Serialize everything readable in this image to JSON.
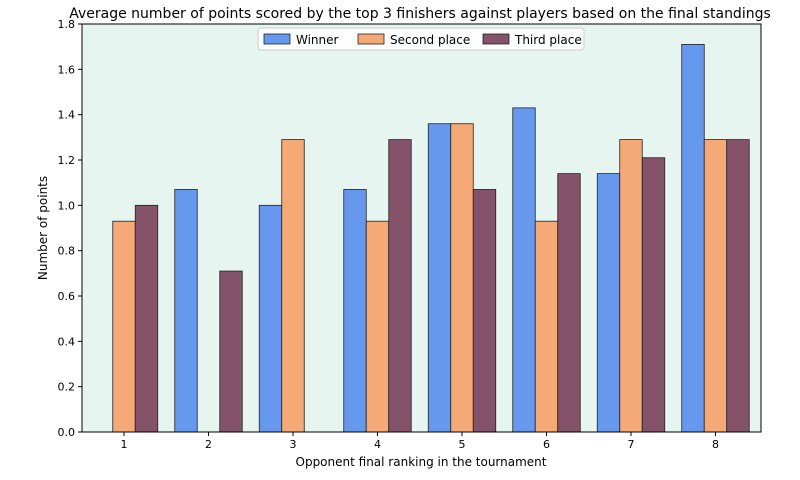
{
  "chart_data": {
    "type": "bar",
    "title": "Average number of points scored by the top 3 finishers against players based on the final standings",
    "xlabel": "Opponent final ranking in the tournament",
    "ylabel": "Number of points",
    "categories": [
      "1",
      "2",
      "3",
      "4",
      "5",
      "6",
      "7",
      "8"
    ],
    "ylim": [
      0,
      1.8
    ],
    "yticks": [
      "0.0",
      "0.2",
      "0.4",
      "0.6",
      "0.8",
      "1.0",
      "1.2",
      "1.4",
      "1.6",
      "1.8"
    ],
    "legend_position": "top-center",
    "grid": false,
    "background_color": "#e6f5ef",
    "series": [
      {
        "name": "Winner",
        "color": "#6699ee",
        "values": [
          null,
          1.07,
          1.0,
          1.07,
          1.36,
          1.43,
          1.14,
          1.71
        ]
      },
      {
        "name": "Second place",
        "color": "#f4a977",
        "values": [
          0.93,
          null,
          1.29,
          0.93,
          1.36,
          0.93,
          1.29,
          1.29
        ]
      },
      {
        "name": "Third place",
        "color": "#84536a",
        "values": [
          1.0,
          0.71,
          null,
          1.29,
          1.07,
          1.14,
          1.21,
          1.29
        ]
      }
    ]
  }
}
